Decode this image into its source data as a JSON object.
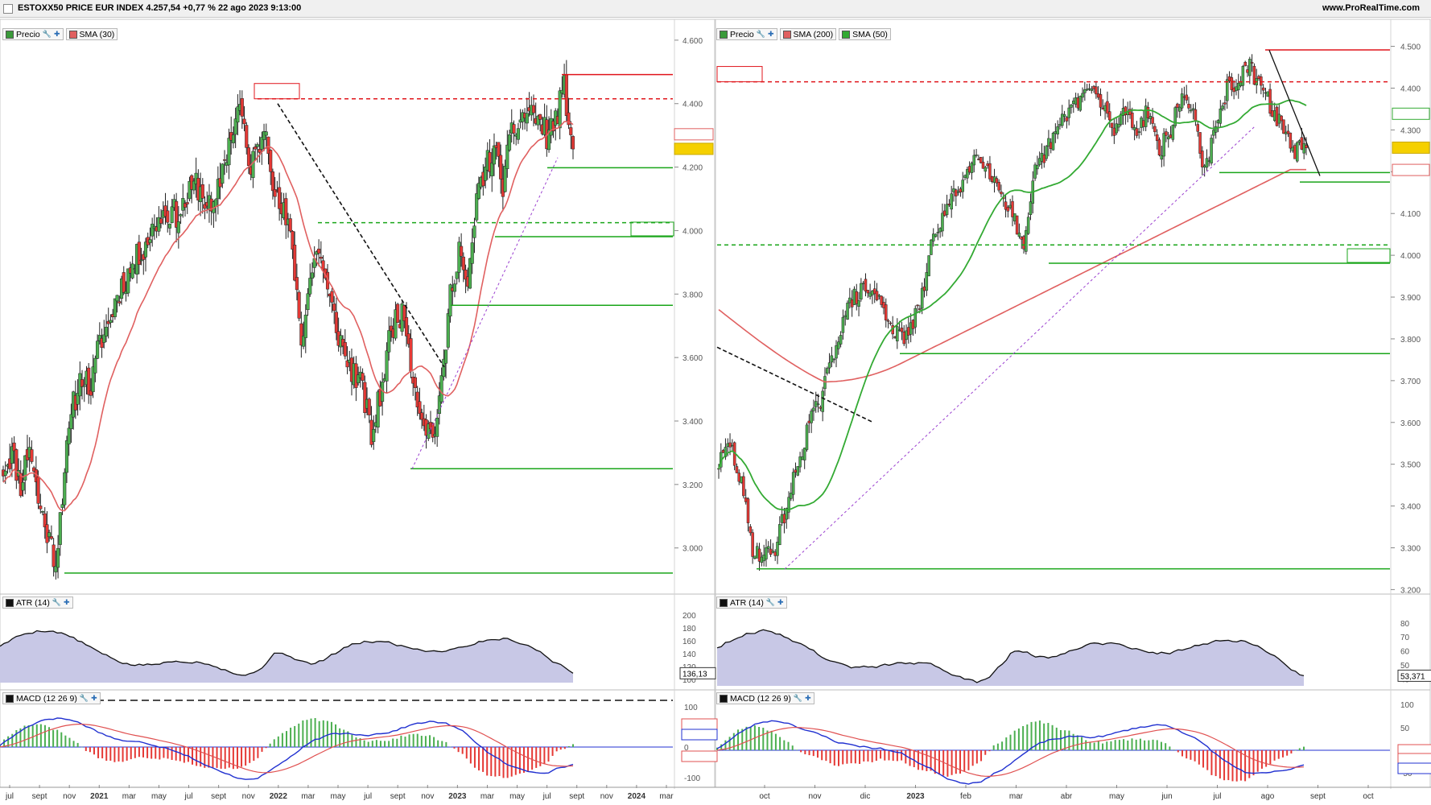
{
  "header": {
    "title": "ESTOXX50 PRICE EUR INDEX 4.257,54 +0,77 % 22 ago 2023 9:13:00",
    "site": "www.ProRealTime.com"
  },
  "colors": {
    "up": "#4caf50",
    "down": "#e53935",
    "sma_red": "#e06060",
    "sma_green": "#33aa33",
    "level_green": "#19a519",
    "level_red": "#e0151b",
    "atr_fill": "#c8c8e6",
    "macd_line": "#2030d0",
    "macd_signal": "#e05050"
  },
  "left": {
    "legend": {
      "precio": "Precio",
      "sma": "SMA (30)",
      "atr": "ATR (14)",
      "macd": "MACD (12 26 9)"
    },
    "watermark": "ProRealTime.com",
    "y_ticks": [
      "4.600",
      "4.400",
      "4.200",
      "4.000",
      "3.800",
      "3.600",
      "3.400",
      "3.200",
      "3.000"
    ],
    "x_ticks": [
      "jul",
      "sept",
      "nov",
      "2021",
      "mar",
      "may",
      "jul",
      "sept",
      "nov",
      "2022",
      "mar",
      "may",
      "jul",
      "sept",
      "nov",
      "2023",
      "mar",
      "may",
      "jul",
      "sept",
      "nov",
      "2024",
      "mar"
    ],
    "price_tags": {
      "sma": "4.303,40",
      "last": "4.257,54"
    },
    "levels": [
      "4.491,51",
      "4.415,23",
      "4.197,97",
      "4.024,89",
      "3.980,94",
      "3.764,70",
      "3.249,57",
      "2.920,87"
    ],
    "atr": {
      "ticks": [
        "200",
        "180",
        "160",
        "140",
        "120",
        "100"
      ],
      "value": "136,13"
    },
    "macd": {
      "ticks": [
        "100",
        "0",
        "-100"
      ],
      "line": "44,867",
      "signal": "73,971",
      "hist": "-29,104"
    }
  },
  "right": {
    "legend": {
      "precio": "Precio",
      "sma200": "SMA (200)",
      "sma50": "SMA (50)",
      "atr": "ATR (14)",
      "macd": "MACD (12 26 9)"
    },
    "watermark": "ProRealTime.com",
    "y_ticks": [
      "4.500",
      "4.400",
      "4.300",
      "4.200",
      "4.100",
      "4.000",
      "3.900",
      "3.800",
      "3.700",
      "3.600",
      "3.500",
      "3.400",
      "3.300",
      "3.200"
    ],
    "x_ticks": [
      "oct",
      "nov",
      "dic",
      "2023",
      "feb",
      "mar",
      "abr",
      "may",
      "jun",
      "jul",
      "ago",
      "sept",
      "oct"
    ],
    "price_tags": {
      "sma50": "4.338,72",
      "last": "4.257,54",
      "sma200": "4.204,25"
    },
    "levels": [
      "4.491,51",
      "4.415,23",
      "4.197,97",
      "4.175,37",
      "4.024,89",
      "3.980,94",
      "3.764,70",
      "3.249,57"
    ],
    "atr": {
      "ticks": [
        "80",
        "70",
        "60",
        "50",
        "40"
      ],
      "value": "53,371"
    },
    "macd": {
      "ticks": [
        "100",
        "50",
        "0",
        "-50"
      ],
      "signal": "-13,942",
      "hist": "-18,042",
      "line": "-30,984"
    }
  },
  "chart_data": [
    {
      "type": "candlestick",
      "panel": "left",
      "period": "2020-07 to 2023-08",
      "indicators": [
        "SMA (30)"
      ],
      "y_range": [
        2880,
        4620
      ],
      "closes": [
        3250,
        3300,
        3200,
        3330,
        3150,
        3050,
        2960,
        3250,
        3450,
        3550,
        3500,
        3650,
        3700,
        3800,
        3850,
        3900,
        3950,
        4000,
        4050,
        4060,
        4050,
        4100,
        4150,
        4100,
        4050,
        4200,
        4300,
        4400,
        4200,
        4250,
        4350,
        4100,
        4050,
        3950,
        3650,
        3850,
        3950,
        3800,
        3700,
        3600,
        3550,
        3500,
        3350,
        3480,
        3650,
        3750,
        3700,
        3500,
        3400,
        3350,
        3500,
        3800,
        3950,
        3800,
        4100,
        4200,
        4250,
        4150,
        4300,
        4350,
        4380,
        4350,
        4300,
        4350,
        4450,
        4257
      ],
      "annotations": [
        {
          "label": "4.491,51",
          "value": 4491.51
        },
        {
          "label": "4.415,23",
          "value": 4415.23
        },
        {
          "label": "4.197,97",
          "value": 4197.97
        },
        {
          "label": "4.024,89",
          "value": 4024.89
        },
        {
          "label": "3.980,94",
          "value": 3980.94
        },
        {
          "label": "3.764,70",
          "value": 3764.7
        },
        {
          "label": "3.249,57",
          "value": 3249.57
        },
        {
          "label": "2.920,87",
          "value": 2920.87
        }
      ],
      "last": 4257.54,
      "sma": 4303.4
    },
    {
      "type": "candlestick",
      "panel": "right",
      "period": "2022-09 to 2023-08",
      "indicators": [
        "SMA (200)",
        "SMA (50)"
      ],
      "y_range": [
        3195,
        4530
      ],
      "closes": [
        3500,
        3550,
        3450,
        3300,
        3280,
        3300,
        3400,
        3500,
        3600,
        3650,
        3750,
        3850,
        3900,
        3920,
        3900,
        3850,
        3800,
        3820,
        3900,
        4050,
        4100,
        4150,
        4200,
        4250,
        4200,
        4150,
        4100,
        4000,
        4200,
        4250,
        4300,
        4350,
        4380,
        4400,
        4350,
        4300,
        4350,
        4300,
        4350,
        4250,
        4300,
        4380,
        4350,
        4200,
        4300,
        4400,
        4420,
        4450,
        4400,
        4350,
        4300,
        4250,
        4257
      ],
      "sma200_end": 4204.25,
      "sma50_end": 4338.72,
      "last": 4257.54,
      "annotations": [
        {
          "label": "4.491,51",
          "value": 4491.51
        },
        {
          "label": "4.415,23",
          "value": 4415.23
        },
        {
          "label": "4.197,97",
          "value": 4197.97
        },
        {
          "label": "4.175,37",
          "value": 4175.37
        },
        {
          "label": "4.024,89",
          "value": 4024.89
        },
        {
          "label": "3.980,94",
          "value": 3980.94
        },
        {
          "label": "3.764,70",
          "value": 3764.7
        },
        {
          "label": "3.249,57",
          "value": 3249.57
        }
      ]
    }
  ]
}
